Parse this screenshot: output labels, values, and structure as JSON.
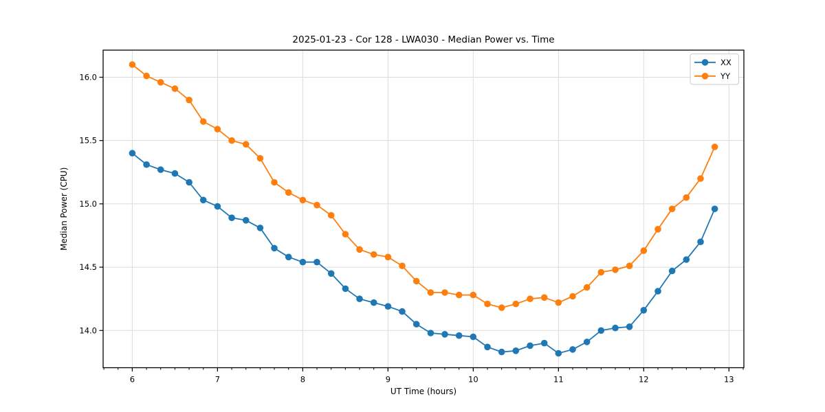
{
  "figure": {
    "background": "#ffffff"
  },
  "chart_data": {
    "type": "line",
    "title": "2025-01-23 - Cor 128 - LWA030 - Median Power vs. Time",
    "xlabel": "UT Time (hours)",
    "ylabel": "Median Power (CPU)",
    "xlim": [
      5.658,
      13.175
    ],
    "ylim": [
      13.706,
      16.214
    ],
    "xticks": [
      6,
      7,
      8,
      9,
      10,
      11,
      12,
      13
    ],
    "yticks": [
      14.0,
      14.5,
      15.0,
      15.5,
      16.0
    ],
    "x_minor_step": 0.1666667,
    "grid": true,
    "grid_color": "#dcdcdc",
    "spine_color": "#000000",
    "legend_position": "upper right",
    "x": [
      6.0,
      6.1667,
      6.3333,
      6.5,
      6.6667,
      6.8333,
      7.0,
      7.1667,
      7.3333,
      7.5,
      7.6667,
      7.8333,
      8.0,
      8.1667,
      8.3333,
      8.5,
      8.6667,
      8.8333,
      9.0,
      9.1667,
      9.3333,
      9.5,
      9.6667,
      9.8333,
      10.0,
      10.1667,
      10.3333,
      10.5,
      10.6667,
      10.8333,
      11.0,
      11.1667,
      11.3333,
      11.5,
      11.6667,
      11.8333,
      12.0,
      12.1667,
      12.3333,
      12.5,
      12.6667,
      12.8333
    ],
    "series": [
      {
        "name": "XX",
        "color": "#1f77b4",
        "values": [
          15.4,
          15.31,
          15.27,
          15.24,
          15.17,
          15.03,
          14.98,
          14.89,
          14.87,
          14.81,
          14.65,
          14.58,
          14.54,
          14.54,
          14.45,
          14.33,
          14.25,
          14.22,
          14.19,
          14.15,
          14.05,
          13.98,
          13.97,
          13.96,
          13.95,
          13.87,
          13.83,
          13.84,
          13.88,
          13.9,
          13.82,
          13.85,
          13.91,
          14.0,
          14.02,
          14.03,
          14.16,
          14.31,
          14.47,
          14.56,
          14.7,
          14.96
        ]
      },
      {
        "name": "YY",
        "color": "#ff7f0e",
        "values": [
          16.1,
          16.01,
          15.96,
          15.91,
          15.82,
          15.65,
          15.59,
          15.5,
          15.47,
          15.36,
          15.17,
          15.09,
          15.03,
          14.99,
          14.91,
          14.76,
          14.64,
          14.6,
          14.58,
          14.51,
          14.39,
          14.3,
          14.3,
          14.28,
          14.28,
          14.21,
          14.18,
          14.21,
          14.25,
          14.26,
          14.22,
          14.27,
          14.34,
          14.46,
          14.48,
          14.51,
          14.63,
          14.8,
          14.96,
          15.05,
          15.2,
          15.45
        ]
      }
    ]
  }
}
